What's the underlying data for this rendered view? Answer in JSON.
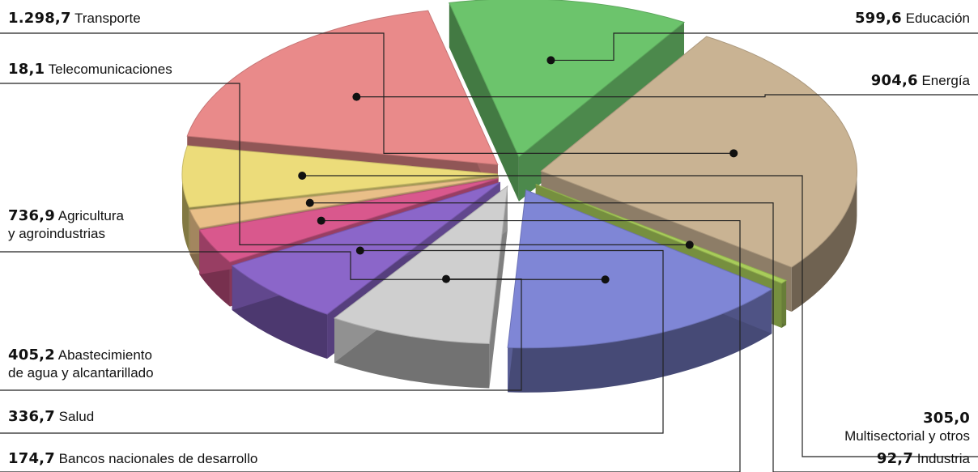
{
  "chart_data": {
    "type": "pie",
    "unit": "",
    "slices": [
      {
        "value": 1298.7,
        "value_text": "1.298,7",
        "label": "Transporte",
        "color": "#c9b393"
      },
      {
        "value": 18.1,
        "value_text": "18,1",
        "label": "Telecomunicaciones",
        "color": "#a8cc5a"
      },
      {
        "value": 736.9,
        "value_text": "736,9",
        "label": "Agricultura y agroindustrias",
        "label_lines": [
          "Agricultura",
          "y agroindustrias"
        ],
        "color": "#7f86d6"
      },
      {
        "value": 405.2,
        "value_text": "405,2",
        "label": "Abastecimiento de agua y alcantarillado",
        "label_lines": [
          "Abastecimiento",
          "de agua y alcantarillado"
        ],
        "color": "#cfcfcf"
      },
      {
        "value": 336.7,
        "value_text": "336,7",
        "label": "Salud",
        "color": "#8b66c9"
      },
      {
        "value": 174.7,
        "value_text": "174,7",
        "label": "Bancos nacionales de desarrollo",
        "color": "#d9588d"
      },
      {
        "value": 92.7,
        "value_text": "92,7",
        "label": "Industria",
        "color": "#e9bf88"
      },
      {
        "value": 305.0,
        "value_text": "305,0",
        "label": "Multisectorial y otros",
        "color": "#ecdc7a"
      },
      {
        "value": 904.6,
        "value_text": "904,6",
        "label": "Energía",
        "color": "#e98a8a"
      },
      {
        "value": 599.6,
        "value_text": "599,6",
        "label": "Educación",
        "color": "#6cc46c"
      }
    ]
  }
}
